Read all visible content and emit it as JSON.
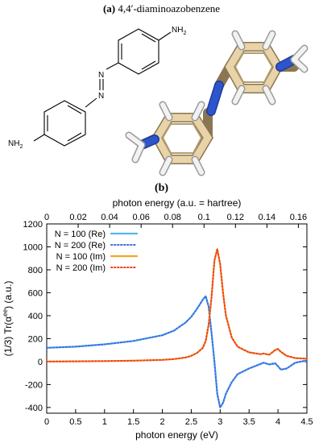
{
  "panel_a": {
    "label": "(a)",
    "title": "4,4′-diaminoazobenzene",
    "amine_top": "NH",
    "amine_top_sub": "2",
    "amine_bottom": "NH",
    "amine_bottom_sub": "2",
    "azo_n1": "N",
    "azo_n2": "N"
  },
  "panel_b": {
    "label": "(b)"
  },
  "colors": {
    "re": "#4fb6ea",
    "re_dotted": "#3f6fe0",
    "im": "#f4a623",
    "im_dotted": "#f0401f",
    "carbon": "#e8d4a8",
    "nitrogen": "#2f55cc",
    "hydrogen": "#f2f2f2"
  },
  "chart_data": {
    "type": "line",
    "xlabel": "photon energy (eV)",
    "x2label": "photon energy (a.u. = hartree)",
    "ylabel": "(1/3) Tr(αee) (a.u.)",
    "xlim": [
      0,
      4.5
    ],
    "x2lim": [
      0,
      0.1654
    ],
    "ylim": [
      -450,
      1200
    ],
    "xticks": [
      0,
      0.5,
      1,
      1.5,
      2,
      2.5,
      3,
      3.5,
      4,
      4.5
    ],
    "xtick_labels": [
      "0",
      "0.5",
      "1",
      "1.5",
      "2",
      "2.5",
      "3",
      "3.5",
      "4",
      "4.5"
    ],
    "x2ticks": [
      0,
      0.02,
      0.04,
      0.06,
      0.08,
      0.1,
      0.12,
      0.14,
      0.16
    ],
    "x2tick_labels": [
      "0",
      "0.02",
      "0.04",
      "0.06",
      "0.08",
      "0.1",
      "0.12",
      "0.14",
      "0.16"
    ],
    "yticks": [
      -400,
      -200,
      0,
      200,
      400,
      600,
      800,
      1000,
      1200
    ],
    "ytick_labels": [
      "-400",
      "-200",
      "0",
      "200",
      "400",
      "600",
      "800",
      "1000",
      "1200"
    ],
    "grid": false,
    "legend_position": "top-left",
    "x": [
      0,
      0.5,
      1.0,
      1.5,
      2.0,
      2.2,
      2.4,
      2.5,
      2.6,
      2.7,
      2.75,
      2.8,
      2.85,
      2.9,
      2.95,
      3.0,
      3.05,
      3.1,
      3.2,
      3.3,
      3.5,
      3.7,
      3.75,
      3.85,
      3.95,
      4.0,
      4.05,
      4.15,
      4.3,
      4.5
    ],
    "series": [
      {
        "name": "N = 100 (Re)",
        "style": "solid",
        "values": [
          120,
          130,
          150,
          180,
          230,
          270,
          340,
          390,
          460,
          540,
          570,
          480,
          250,
          0,
          -280,
          -400,
          -360,
          -280,
          -180,
          -110,
          -60,
          -20,
          -10,
          -25,
          -15,
          -40,
          -70,
          -60,
          -10,
          10
        ]
      },
      {
        "name": "N = 200 (Re)",
        "style": "dotted",
        "values": [
          120,
          130,
          150,
          180,
          230,
          270,
          340,
          390,
          460,
          540,
          570,
          480,
          250,
          0,
          -280,
          -400,
          -360,
          -280,
          -180,
          -110,
          -60,
          -20,
          -10,
          -25,
          -15,
          -40,
          -70,
          -60,
          -10,
          10
        ]
      },
      {
        "name": "N = 100 (Im)",
        "style": "solid",
        "values": [
          0,
          2,
          4,
          8,
          15,
          22,
          35,
          50,
          75,
          120,
          180,
          320,
          560,
          880,
          980,
          850,
          600,
          400,
          210,
          130,
          80,
          65,
          70,
          60,
          100,
          110,
          85,
          50,
          30,
          25
        ]
      },
      {
        "name": "N = 200 (Im)",
        "style": "dotted",
        "values": [
          0,
          2,
          4,
          8,
          15,
          22,
          35,
          50,
          75,
          120,
          180,
          320,
          560,
          880,
          980,
          850,
          600,
          400,
          210,
          130,
          80,
          65,
          70,
          60,
          100,
          110,
          85,
          50,
          30,
          25
        ]
      }
    ]
  }
}
